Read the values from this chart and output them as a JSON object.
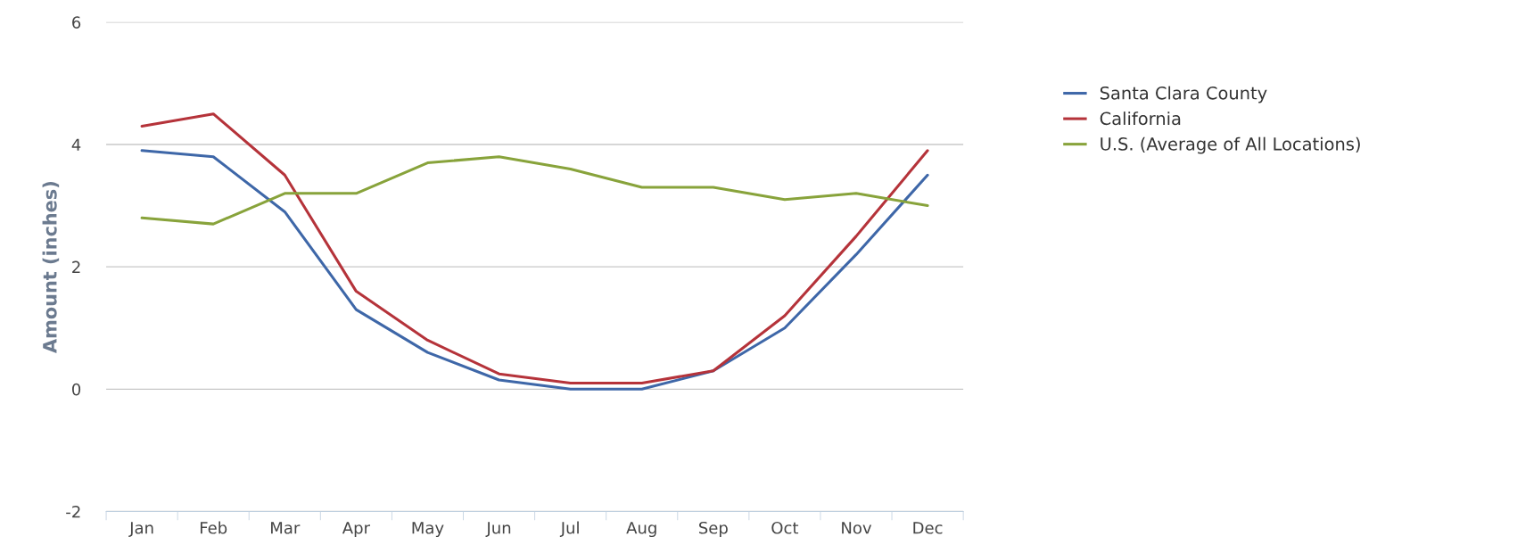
{
  "chart_data": {
    "type": "line",
    "ylabel": "Amount (inches)",
    "categories": [
      "Jan",
      "Feb",
      "Mar",
      "Apr",
      "May",
      "Jun",
      "Jul",
      "Aug",
      "Sep",
      "Oct",
      "Nov",
      "Dec"
    ],
    "series": [
      {
        "name": "Santa Clara County",
        "color": "#3e67a8",
        "values": [
          3.9,
          3.8,
          2.9,
          1.3,
          0.6,
          0.15,
          0.0,
          0.0,
          0.3,
          1.0,
          2.2,
          3.5
        ]
      },
      {
        "name": "California",
        "color": "#b5333a",
        "values": [
          4.3,
          4.5,
          3.5,
          1.6,
          0.8,
          0.25,
          0.1,
          0.1,
          0.3,
          1.2,
          2.5,
          3.9
        ]
      },
      {
        "name": "U.S. (Average of All Locations)",
        "color": "#88a33b",
        "values": [
          2.8,
          2.7,
          3.2,
          3.2,
          3.7,
          3.8,
          3.6,
          3.3,
          3.3,
          3.1,
          3.2,
          3.0
        ]
      }
    ],
    "ylim": [
      -2,
      6
    ],
    "yticks": [
      -2,
      0,
      2,
      4,
      6
    ],
    "grid": "y",
    "legend": "right",
    "marker": "none",
    "line_style": "solid"
  }
}
